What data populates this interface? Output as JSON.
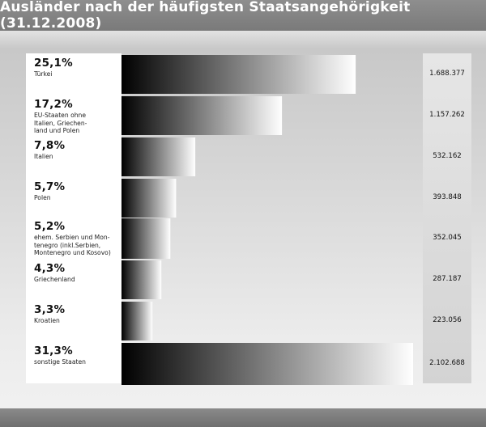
{
  "title": "Ausländer nach der häufigsten Staatsangehörigkeit (31.12.2008)",
  "chart_data": {
    "type": "bar",
    "orientation": "horizontal",
    "title": "Ausländer nach der häufigsten Staatsangehörigkeit (31.12.2008)",
    "categories": [
      "Türkei",
      "EU-Staaten ohne\nItalien, Griechen-\nland und Polen",
      "Italien",
      "Polen",
      "ehem. Serbien und Mon-\ntenegro (inkl.Serbien,\nMontenegro und Kosovo)",
      "Griechenland",
      "Kroatien",
      "sonstige Staaten"
    ],
    "percent_labels": [
      "25,1%",
      "17,2%",
      "7,8%",
      "5,7%",
      "5,2%",
      "4,3%",
      "3,3%",
      "31,3%"
    ],
    "value_labels": [
      "1.688.377",
      "1.157.262",
      "532.162",
      "393.848",
      "352.045",
      "287.187",
      "223.056",
      "2.102.688"
    ],
    "values": [
      1688377,
      1157262,
      532162,
      393848,
      352045,
      287187,
      223056,
      2102688
    ],
    "colors": {
      "bar_dark": "#000000",
      "bar_light": "#ffffff"
    }
  }
}
